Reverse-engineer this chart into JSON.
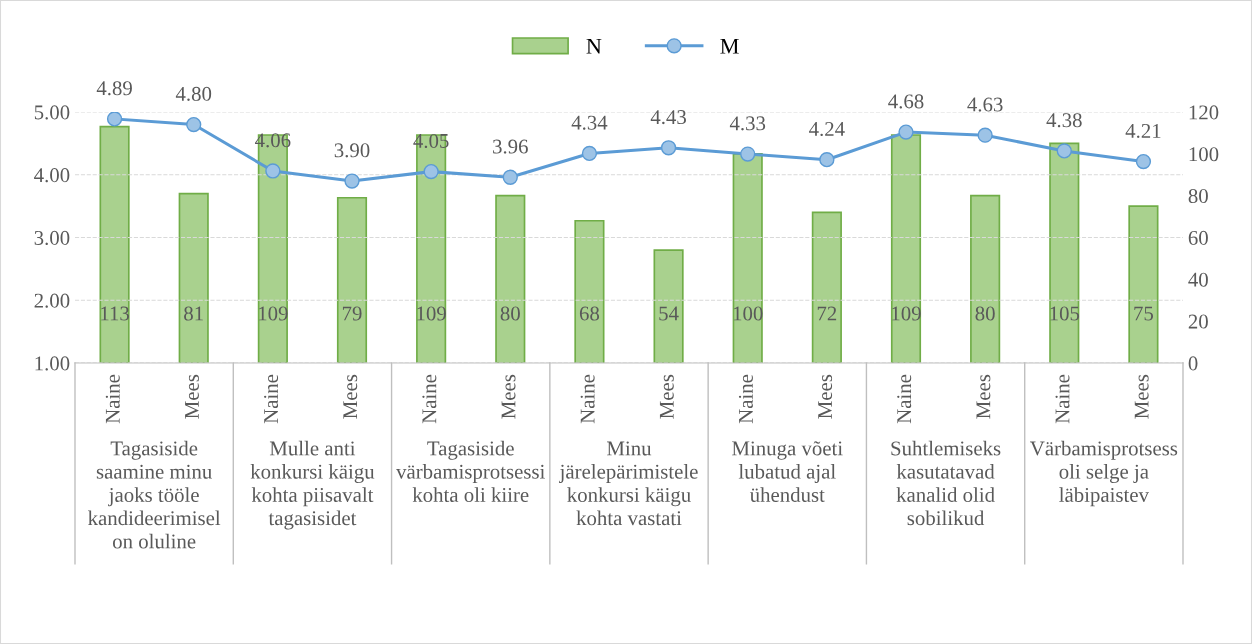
{
  "chart_data": {
    "type": "bar",
    "categories": [
      "Naine",
      "Mees",
      "Naine",
      "Mees",
      "Naine",
      "Mees",
      "Naine",
      "Mees",
      "Naine",
      "Mees",
      "Naine",
      "Mees",
      "Naine",
      "Mees"
    ],
    "series": [
      {
        "name": "N",
        "axis": "y2",
        "color": "#a9d18e",
        "values": [
          113,
          81,
          109,
          79,
          109,
          80,
          68,
          54,
          100,
          72,
          109,
          80,
          105,
          75
        ]
      },
      {
        "name": "M",
        "type": "line",
        "axis": "y",
        "color": "#5b9bd5",
        "marker": "circle",
        "line_style": "solid",
        "values": [
          4.89,
          4.8,
          4.06,
          3.9,
          4.05,
          3.96,
          4.34,
          4.43,
          4.33,
          4.24,
          4.68,
          4.63,
          4.38,
          4.21
        ],
        "value_labels": [
          "4.89",
          "4.80",
          "4.06",
          "3.90",
          "4.05",
          "3.96",
          "4.34",
          "4.43",
          "4.33",
          "4.24",
          "4.68",
          "4.63",
          "4.38",
          "4.21"
        ]
      }
    ],
    "annotations": [
      "Tagasiside saamine minu jaoks tööle kandideerimisel on oluline",
      "Mulle anti konkursi käigu kohta piisavalt tagasisidet",
      "Tagasiside värbamisprotsessi kohta oli kiire",
      "Minu järelepärimistele konkursi käigu kohta vastati",
      "Minuga võeti lubatud ajal ühendust",
      "Suhtlemiseks kasutatavad kanalid olid sobilikud",
      "Värbamisprotsess oli selge ja läbipaistev"
    ],
    "ylim": [
      1,
      5
    ],
    "yticks": [
      {
        "value": 1,
        "label": "1.00"
      },
      {
        "value": 2,
        "label": "2.00"
      },
      {
        "value": 3,
        "label": "3.00"
      },
      {
        "value": 4,
        "label": "4.00"
      },
      {
        "value": 5,
        "label": "5.00"
      }
    ],
    "y2lim": [
      0,
      120
    ],
    "y2ticks": [
      0,
      20,
      40,
      60,
      80,
      100,
      120
    ],
    "grid": "y",
    "legend": "top",
    "data_labels": true
  }
}
